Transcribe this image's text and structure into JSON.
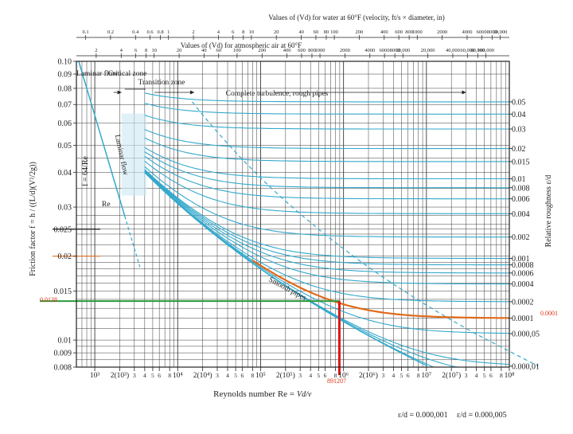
{
  "chart_data": {
    "type": "line",
    "title": "",
    "top_axis_1": {
      "label": "Values of (Vd) for water at 60°F (velocity, ft/s × diameter, in)",
      "ticks": [
        "0.1",
        "0.2",
        "0.4",
        "0.6",
        "0.8",
        "1",
        "2",
        "4",
        "6",
        "8",
        "10",
        "20",
        "40",
        "60",
        "80",
        "100",
        "200",
        "400",
        "600",
        "800",
        "1000",
        "2000",
        "4000",
        "6000",
        "8000",
        "10,000"
      ]
    },
    "top_axis_2": {
      "label": "Values of (Vd) for atmospheric air at 60°F",
      "ticks": [
        "2",
        "4",
        "6",
        "8",
        "10",
        "20",
        "40",
        "60",
        "100",
        "200",
        "400",
        "600",
        "800",
        "1000",
        "2000",
        "4000",
        "6000",
        "8000",
        "10,000",
        "20,000",
        "40,000",
        "60,000",
        "80,000",
        "100,000"
      ]
    },
    "xlabel": "Reynolds number Re =",
    "xlabel_formula": "Vd/ν",
    "ylabel_left": "Friction factor f = h / ((L/d)(V²/2g))",
    "ylabel_right": "Relative roughness ε/d",
    "x_log": true,
    "y_log": true,
    "xlim": [
      600,
      100000000
    ],
    "ylim": [
      0.008,
      0.1
    ],
    "x_ticks": [
      {
        "v": 1000,
        "label": "10³"
      },
      {
        "v": 2000,
        "label": "2(10³)"
      },
      {
        "v": 3000,
        "label": "3"
      },
      {
        "v": 4000,
        "label": "4"
      },
      {
        "v": 5000,
        "label": "5"
      },
      {
        "v": 6000,
        "label": "6"
      },
      {
        "v": 8000,
        "label": "8"
      },
      {
        "v": 10000,
        "label": "10⁴"
      },
      {
        "v": 20000,
        "label": "2(10⁴)"
      },
      {
        "v": 30000,
        "label": "3"
      },
      {
        "v": 40000,
        "label": "4"
      },
      {
        "v": 50000,
        "label": "5"
      },
      {
        "v": 60000,
        "label": "6"
      },
      {
        "v": 80000,
        "label": "8"
      },
      {
        "v": 100000,
        "label": "10⁵"
      },
      {
        "v": 200000,
        "label": "2(10⁵)"
      },
      {
        "v": 300000,
        "label": "3"
      },
      {
        "v": 400000,
        "label": "4"
      },
      {
        "v": 500000,
        "label": "5"
      },
      {
        "v": 600000,
        "label": "6"
      },
      {
        "v": 800000,
        "label": "8"
      },
      {
        "v": 1000000,
        "label": "10⁶"
      },
      {
        "v": 2000000,
        "label": "2(10⁶)"
      },
      {
        "v": 3000000,
        "label": "3"
      },
      {
        "v": 4000000,
        "label": "4"
      },
      {
        "v": 5000000,
        "label": "5"
      },
      {
        "v": 6000000,
        "label": "6"
      },
      {
        "v": 8000000,
        "label": "8"
      },
      {
        "v": 10000000,
        "label": "10⁷"
      },
      {
        "v": 20000000,
        "label": "2(10⁷)"
      },
      {
        "v": 30000000,
        "label": "3"
      },
      {
        "v": 40000000,
        "label": "4"
      },
      {
        "v": 50000000,
        "label": "5"
      },
      {
        "v": 60000000,
        "label": "6"
      },
      {
        "v": 80000000,
        "label": "8"
      },
      {
        "v": 100000000,
        "label": "10⁸"
      }
    ],
    "y_ticks": [
      {
        "v": 0.1,
        "label": "0.10"
      },
      {
        "v": 0.09,
        "label": "0.09"
      },
      {
        "v": 0.08,
        "label": "0.08"
      },
      {
        "v": 0.07,
        "label": "0.07"
      },
      {
        "v": 0.06,
        "label": "0.06"
      },
      {
        "v": 0.05,
        "label": "0.05"
      },
      {
        "v": 0.04,
        "label": "0.04"
      },
      {
        "v": 0.03,
        "label": "0.03"
      },
      {
        "v": 0.025,
        "label": "0.025"
      },
      {
        "v": 0.02,
        "label": "0.02"
      },
      {
        "v": 0.015,
        "label": "0.015"
      },
      {
        "v": 0.01,
        "label": "0.01"
      },
      {
        "v": 0.009,
        "label": "0.009"
      },
      {
        "v": 0.008,
        "label": "0.008"
      }
    ],
    "roughness_ticks": [
      {
        "e": 0.05,
        "label": "0.05"
      },
      {
        "e": 0.04,
        "label": "0.04"
      },
      {
        "e": 0.03,
        "label": "0.03"
      },
      {
        "e": 0.02,
        "label": "0.02"
      },
      {
        "e": 0.015,
        "label": "0.015"
      },
      {
        "e": 0.01,
        "label": "0.01"
      },
      {
        "e": 0.008,
        "label": "0.008"
      },
      {
        "e": 0.006,
        "label": "0.006"
      },
      {
        "e": 0.004,
        "label": "0.004"
      },
      {
        "e": 0.002,
        "label": "0.002"
      },
      {
        "e": 0.001,
        "label": "0.001"
      },
      {
        "e": 0.0008,
        "label": "0.0008"
      },
      {
        "e": 0.0006,
        "label": "0.0006"
      },
      {
        "e": 0.0004,
        "label": "0.0004"
      },
      {
        "e": 0.0002,
        "label": "0.0002"
      },
      {
        "e": 0.0001,
        "label": "0.0001"
      },
      {
        "e": 5e-05,
        "label": "0.000,05"
      },
      {
        "e": 1e-05,
        "label": "0.000,01"
      }
    ],
    "curves_roughness": [
      0.05,
      0.04,
      0.03,
      0.02,
      0.015,
      0.01,
      0.008,
      0.006,
      0.004,
      0.002,
      0.001,
      0.0008,
      0.0006,
      0.0004,
      0.0002,
      0.0001,
      5e-05,
      1e-05,
      5e-06,
      1e-06
    ],
    "zones": {
      "laminar": "Laminar flow",
      "critical": "Critical zone",
      "transition": "Transition zone",
      "turbulence": "Complete turbulence, rough pipes"
    },
    "curve_labels": {
      "laminar_line": "Laminar flow",
      "laminar_formula": "f = 64/Re",
      "recrit": "Re",
      "smooth": "Smooth pipes",
      "rough_a": "ε/d = 0.000,001",
      "rough_b": "ε/d = 0.000,005"
    },
    "highlight": {
      "re": 891207,
      "re_label": "891207",
      "f": 0.0138,
      "f_label": "0.0138",
      "roughness_label": "0.0001",
      "f_025_label": "0.025"
    },
    "colors": {
      "grid": "#3a3a3a",
      "curve": "#33a9cc",
      "highlight_orange": "#e06a1a",
      "highlight_green": "#2a9a3a",
      "highlight_red": "#d81818",
      "value_label": "#e03010"
    }
  }
}
